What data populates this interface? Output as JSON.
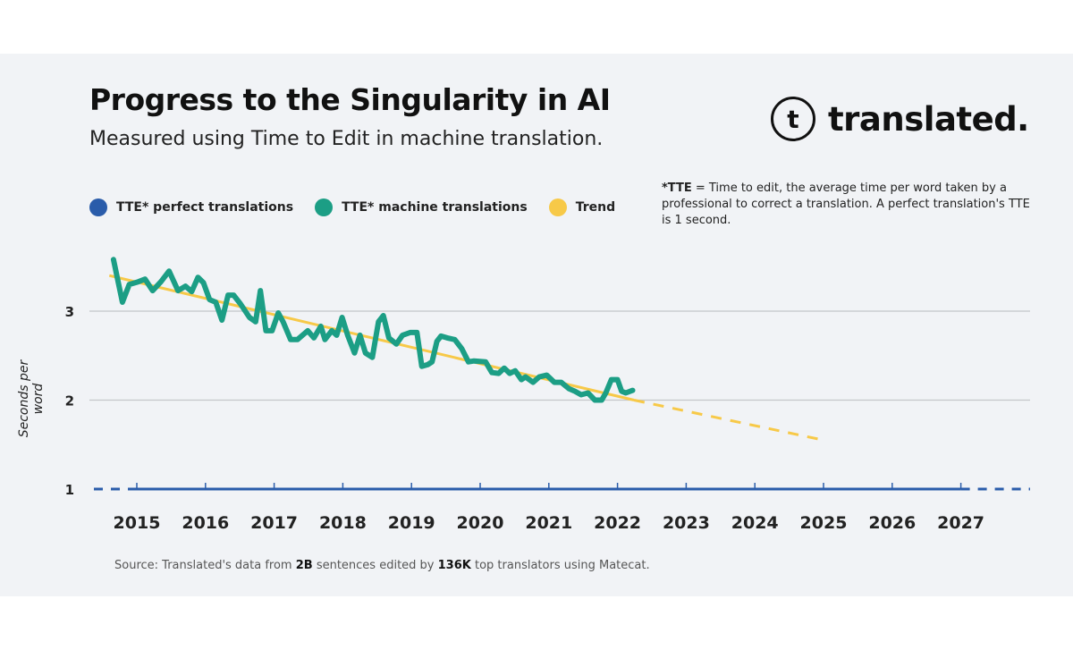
{
  "header": {
    "title": "Progress to the Singularity in AI",
    "subtitle": "Measured using Time to Edit in machine translation.",
    "logo_text": "translated.",
    "logo_glyph": "t"
  },
  "note": {
    "bold": "*TTE",
    "text": " = Time to edit, the average time per word taken by a professional to correct a translation. A perfect translation's TTE is 1 second."
  },
  "source": {
    "prefix": "Source: Translated's data from ",
    "b1": "2B",
    "mid": " sentences edited by ",
    "b2": "136K",
    "suffix": " top translators using Matecat."
  },
  "colors": {
    "perfect": "#2a5caa",
    "machine": "#1c9e85",
    "trend": "#f7c948",
    "grid": "#c4c6c9"
  },
  "chart_data": {
    "type": "line",
    "title": "Progress to the Singularity in AI",
    "subtitle": "Measured using Time to Edit in machine translation.",
    "ylabel": "Seconds per word",
    "xlabel": "",
    "x_ticks": [
      "2015",
      "2016",
      "2017",
      "2018",
      "2019",
      "2020",
      "2021",
      "2022",
      "2023",
      "2024",
      "2025",
      "2026",
      "2027"
    ],
    "y_ticks": [
      "1",
      "2",
      "3"
    ],
    "grid": "horizontal",
    "legend": "top",
    "series": [
      {
        "name": "TTE* perfect translations",
        "style": "solid with dashed extensions",
        "points": [
          [
            2015,
            1
          ],
          [
            2027,
            1
          ]
        ]
      },
      {
        "name": "TTE* machine translations",
        "style": "solid",
        "points": [
          [
            2014.66,
            3.58
          ],
          [
            2014.79,
            3.1
          ],
          [
            2014.89,
            3.3
          ],
          [
            2015.02,
            3.33
          ],
          [
            2015.12,
            3.36
          ],
          [
            2015.23,
            3.23
          ],
          [
            2015.35,
            3.33
          ],
          [
            2015.47,
            3.45
          ],
          [
            2015.6,
            3.23
          ],
          [
            2015.71,
            3.28
          ],
          [
            2015.8,
            3.22
          ],
          [
            2015.89,
            3.38
          ],
          [
            2015.97,
            3.32
          ],
          [
            2016.06,
            3.13
          ],
          [
            2016.15,
            3.1
          ],
          [
            2016.24,
            2.9
          ],
          [
            2016.33,
            3.18
          ],
          [
            2016.41,
            3.18
          ],
          [
            2016.51,
            3.08
          ],
          [
            2016.64,
            2.93
          ],
          [
            2016.73,
            2.88
          ],
          [
            2016.8,
            3.23
          ],
          [
            2016.88,
            2.78
          ],
          [
            2016.97,
            2.78
          ],
          [
            2017.06,
            2.98
          ],
          [
            2017.13,
            2.88
          ],
          [
            2017.24,
            2.68
          ],
          [
            2017.34,
            2.68
          ],
          [
            2017.49,
            2.78
          ],
          [
            2017.58,
            2.7
          ],
          [
            2017.68,
            2.83
          ],
          [
            2017.74,
            2.68
          ],
          [
            2017.84,
            2.78
          ],
          [
            2017.91,
            2.73
          ],
          [
            2017.99,
            2.93
          ],
          [
            2018.07,
            2.73
          ],
          [
            2018.17,
            2.53
          ],
          [
            2018.25,
            2.73
          ],
          [
            2018.33,
            2.53
          ],
          [
            2018.43,
            2.48
          ],
          [
            2018.52,
            2.88
          ],
          [
            2018.59,
            2.95
          ],
          [
            2018.67,
            2.7
          ],
          [
            2018.78,
            2.63
          ],
          [
            2018.87,
            2.73
          ],
          [
            2018.98,
            2.76
          ],
          [
            2019.08,
            2.76
          ],
          [
            2019.15,
            2.38
          ],
          [
            2019.24,
            2.4
          ],
          [
            2019.3,
            2.43
          ],
          [
            2019.37,
            2.66
          ],
          [
            2019.43,
            2.72
          ],
          [
            2019.52,
            2.7
          ],
          [
            2019.63,
            2.68
          ],
          [
            2019.73,
            2.58
          ],
          [
            2019.83,
            2.43
          ],
          [
            2019.91,
            2.44
          ],
          [
            2020.08,
            2.43
          ],
          [
            2020.17,
            2.31
          ],
          [
            2020.27,
            2.3
          ],
          [
            2020.35,
            2.36
          ],
          [
            2020.43,
            2.3
          ],
          [
            2020.51,
            2.33
          ],
          [
            2020.6,
            2.23
          ],
          [
            2020.66,
            2.26
          ],
          [
            2020.77,
            2.2
          ],
          [
            2020.86,
            2.26
          ],
          [
            2020.97,
            2.28
          ],
          [
            2021.08,
            2.2
          ],
          [
            2021.18,
            2.2
          ],
          [
            2021.29,
            2.13
          ],
          [
            2021.38,
            2.1
          ],
          [
            2021.47,
            2.06
          ],
          [
            2021.57,
            2.08
          ],
          [
            2021.67,
            2.0
          ],
          [
            2021.77,
            2.0
          ],
          [
            2021.83,
            2.08
          ],
          [
            2021.91,
            2.23
          ],
          [
            2022.0,
            2.23
          ],
          [
            2022.06,
            2.1
          ],
          [
            2022.12,
            2.08
          ],
          [
            2022.22,
            2.11
          ]
        ]
      },
      {
        "name": "Trend",
        "style": "solid then dashed projection",
        "points": [
          [
            2014.6,
            3.4
          ],
          [
            2022.24,
            2.0
          ],
          [
            2025.0,
            1.55
          ]
        ]
      }
    ]
  }
}
